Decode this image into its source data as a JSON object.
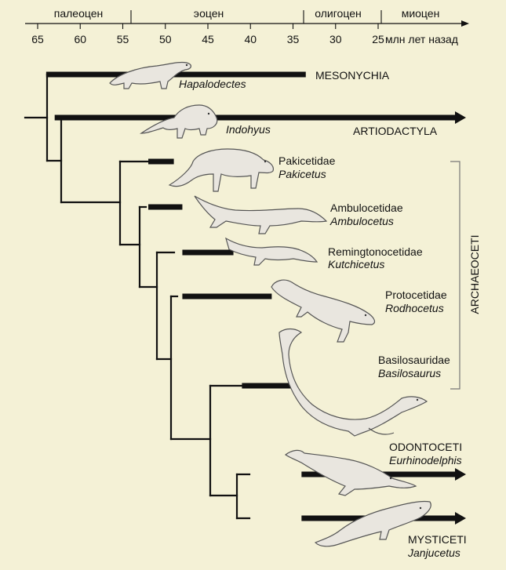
{
  "palette": {
    "background": "#f4f1d6",
    "ink": "#111111",
    "animal_fill": "#e9e6df",
    "animal_stroke": "#555555"
  },
  "timescale": {
    "epochs": [
      {
        "name": "палеоцен",
        "start": 66,
        "end": 56
      },
      {
        "name": "эоцен",
        "start": 56,
        "end": 34
      },
      {
        "name": "олигоцен",
        "start": 34,
        "end": 23
      },
      {
        "name": "миоцен",
        "start": 23,
        "end": 18
      }
    ],
    "ticks": [
      65,
      60,
      55,
      50,
      45,
      40,
      35,
      30,
      25
    ],
    "tick_labels": [
      "65",
      "60",
      "55",
      "50",
      "45",
      "40",
      "35",
      "30",
      "25"
    ],
    "unit_label": "млн лет назад"
  },
  "taxa": {
    "mesonychia": {
      "group": "MESONYCHIA",
      "genus": "Hapalodectes",
      "range": [
        64,
        33.5
      ],
      "arrow": false
    },
    "artiodactyla": {
      "group": "ARTIODACTYLA",
      "genus": "Indohyus",
      "range": [
        63,
        0
      ],
      "arrow": true
    },
    "pakicetidae": {
      "group": "Pakicetidae",
      "genus": "Pakicetus",
      "range": [
        52,
        49
      ],
      "arrow": false
    },
    "ambulocetidae": {
      "group": "Ambulocetidae",
      "genus": "Ambulocetus",
      "range": [
        52,
        48
      ],
      "arrow": false
    },
    "remingtonocetidae": {
      "group": "Remingtonocetidae",
      "genus": "Kutchicetus",
      "range": [
        48,
        42
      ],
      "arrow": false
    },
    "protocetidae": {
      "group": "Protocetidae",
      "genus": "Rodhocetus",
      "range": [
        48,
        37.5
      ],
      "arrow": false
    },
    "basilosauridae": {
      "group": "Basilosauridae",
      "genus": "Basilosaurus",
      "range": [
        41,
        35
      ],
      "arrow": false
    },
    "odontoceti": {
      "group": "ODONTOCETI",
      "genus": "Eurhinodelphis",
      "range": [
        34,
        0
      ],
      "arrow": true
    },
    "mysticeti": {
      "group": "MYSTICETI",
      "genus": "Janjucetus",
      "range": [
        34,
        0
      ],
      "arrow": true
    }
  },
  "bracket": {
    "label": "ARCHAEOCETI"
  }
}
